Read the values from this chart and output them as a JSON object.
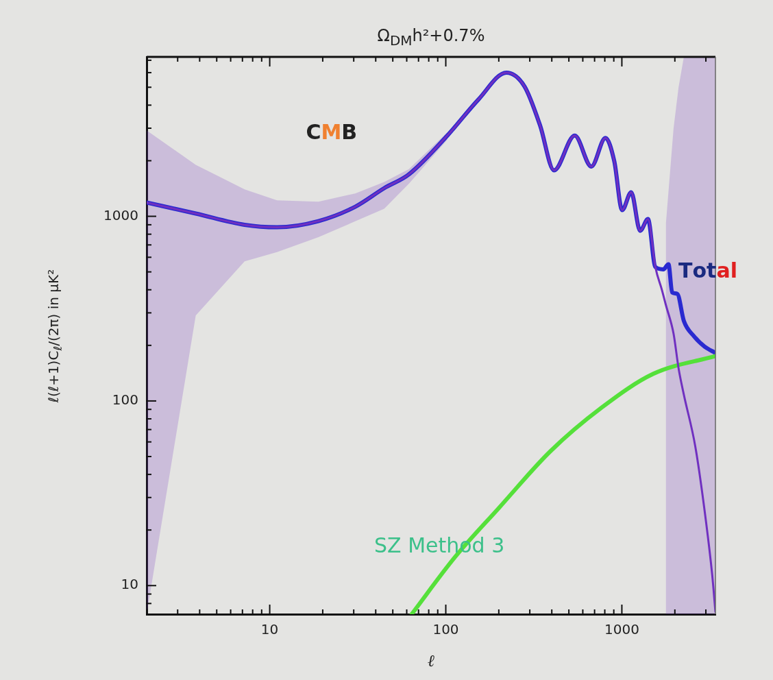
{
  "chart_data": {
    "type": "line",
    "title": "Ω$_{DM}$h²+0.7%",
    "xlabel": "ℓ",
    "ylabel": "ℓ(ℓ+1)C$_{ℓ}$/(2π) in μK²",
    "log": "xy",
    "xlim": [
      2,
      3400
    ],
    "ylim": [
      7,
      7300
    ],
    "xticks": [
      {
        "value": 2,
        "label": null
      },
      {
        "value": 3,
        "label": null
      },
      {
        "value": 4,
        "label": null
      },
      {
        "value": 5,
        "label": null
      },
      {
        "value": 6,
        "label": null
      },
      {
        "value": 7,
        "label": null
      },
      {
        "value": 8,
        "label": null
      },
      {
        "value": 9,
        "label": null
      },
      10,
      {
        "value": 20,
        "label": null
      },
      {
        "value": 30,
        "label": null
      },
      {
        "value": 40,
        "label": null
      },
      {
        "value": 50,
        "label": null
      },
      {
        "value": 60,
        "label": null
      },
      {
        "value": 70,
        "label": null
      },
      {
        "value": 80,
        "label": null
      },
      {
        "value": 90,
        "label": null
      },
      100,
      {
        "value": 200,
        "label": null
      },
      {
        "value": 300,
        "label": null
      },
      {
        "value": 400,
        "label": null
      },
      {
        "value": 500,
        "label": null
      },
      {
        "value": 600,
        "label": null
      },
      {
        "value": 700,
        "label": null
      },
      {
        "value": 800,
        "label": null
      },
      {
        "value": 900,
        "label": null
      },
      1000,
      {
        "value": 2000,
        "label": null
      },
      {
        "value": 3000,
        "label": null
      }
    ],
    "yticks": [
      {
        "value": 8,
        "label": null
      },
      {
        "value": 9,
        "label": null
      },
      10,
      {
        "value": 20,
        "label": null
      },
      {
        "value": 30,
        "label": null
      },
      {
        "value": 40,
        "label": null
      },
      {
        "value": 50,
        "label": null
      },
      {
        "value": 60,
        "label": null
      },
      {
        "value": 70,
        "label": null
      },
      {
        "value": 80,
        "label": null
      },
      {
        "value": 90,
        "label": null
      },
      100,
      {
        "value": 200,
        "label": null
      },
      {
        "value": 300,
        "label": null
      },
      {
        "value": 400,
        "label": null
      },
      {
        "value": 500,
        "label": null
      },
      {
        "value": 600,
        "label": null
      },
      {
        "value": 700,
        "label": null
      },
      {
        "value": 800,
        "label": null
      },
      {
        "value": 900,
        "label": null
      },
      1000,
      {
        "value": 2000,
        "label": null
      },
      {
        "value": 3000,
        "label": null
      },
      {
        "value": 4000,
        "label": null
      },
      {
        "value": 5000,
        "label": null
      },
      {
        "value": 6000,
        "label": null
      },
      {
        "value": 7000,
        "label": null
      }
    ],
    "series": [
      {
        "name": "CMB",
        "color": "#7030c0",
        "x": [
          2,
          3.8,
          7.2,
          11,
          18.9,
          30.6,
          44.7,
          61.7,
          102,
          153,
          221,
          280,
          343,
          412,
          540,
          671,
          807,
          906,
          1004,
          1130,
          1270,
          1407,
          1550,
          1690,
          1780,
          1967,
          2100,
          2250,
          2610,
          2950,
          3260,
          3400
        ],
        "values": [
          1187,
          1035,
          899,
          872,
          942,
          1127,
          1420,
          1687,
          2735,
          4285,
          6000,
          5050,
          3110,
          1774,
          2735,
          1861,
          2655,
          1983,
          1080,
          1349,
          835,
          966,
          531,
          398,
          330,
          231,
          150,
          108,
          57,
          25.5,
          11.4,
          7.2
        ],
        "lower": [
          7,
          290,
          570,
          640,
          771,
          940,
          1100,
          1500,
          2600,
          null,
          null,
          null,
          null,
          null,
          null,
          null,
          null,
          null,
          null,
          null,
          null,
          null,
          null,
          null,
          7,
          7,
          7,
          7,
          7,
          7,
          7,
          7
        ],
        "upper": [
          2920,
          1900,
          1400,
          1220,
          1200,
          1330,
          1535,
          1800,
          2850,
          null,
          null,
          null,
          null,
          null,
          null,
          null,
          null,
          null,
          null,
          null,
          null,
          null,
          null,
          null,
          918,
          3000,
          5000,
          7300,
          7300,
          7300,
          7300,
          7300
        ]
      },
      {
        "name": "Total",
        "color": "#2a2ad0",
        "x": [
          2,
          3.8,
          7.2,
          11,
          18.9,
          30.6,
          44.7,
          61.7,
          102,
          153,
          221,
          280,
          343,
          412,
          540,
          671,
          807,
          906,
          1004,
          1130,
          1270,
          1407,
          1550,
          1720,
          1840,
          1930,
          2065,
          2250,
          2570,
          2950,
          3400
        ],
        "values": [
          1187,
          1035,
          899,
          872,
          942,
          1127,
          1420,
          1687,
          2735,
          4285,
          6000,
          5050,
          3110,
          1774,
          2735,
          1861,
          2655,
          1983,
          1080,
          1349,
          835,
          966,
          531,
          516,
          550,
          387,
          380,
          271,
          224,
          197,
          182
        ]
      },
      {
        "name": "SZ Method 3",
        "color": "#55e03a",
        "x": [
          64,
          113,
          200,
          392,
          767,
          1503,
          3400
        ],
        "values": [
          7,
          14.3,
          26.3,
          53.3,
          92,
          140,
          175
        ]
      }
    ]
  }
}
